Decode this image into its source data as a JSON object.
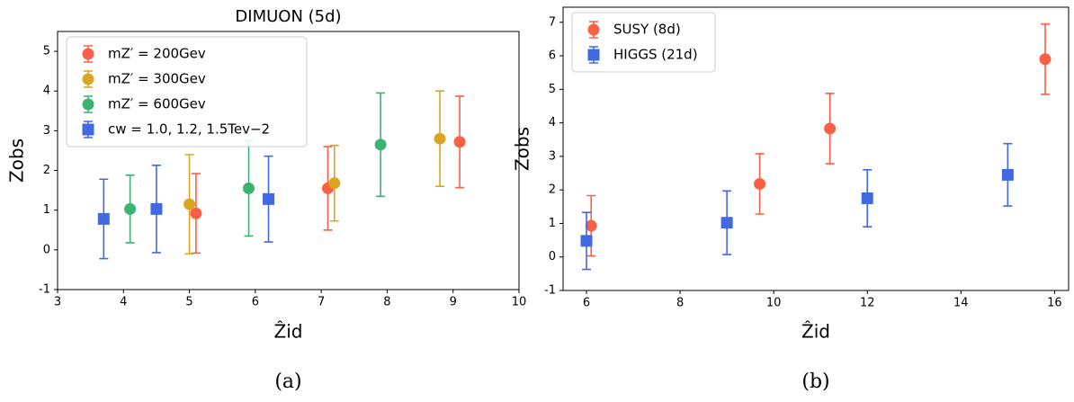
{
  "chart_data": [
    {
      "type": "errorbar",
      "title": "DIMUON (5d)",
      "xlabel": "Ẑid",
      "ylabel": "Zobs",
      "caption": "(a)",
      "xlim": [
        3,
        10
      ],
      "ylim": [
        -1,
        5.5
      ],
      "xticks": [
        3,
        4,
        5,
        6,
        7,
        8,
        9,
        10
      ],
      "yticks": [
        -1,
        0,
        1,
        2,
        3,
        4,
        5
      ],
      "legend": "upper left",
      "series": [
        {
          "name": "mZ′ = 200Gev",
          "color": "#fa6047",
          "marker": "circle",
          "x": [
            5.1,
            7.1,
            9.1
          ],
          "values": [
            0.92,
            1.55,
            2.72
          ],
          "errors": [
            1.0,
            1.05,
            1.15
          ]
        },
        {
          "name": "mZ′ = 300Gev",
          "color": "#daa520",
          "marker": "circle",
          "x": [
            5.0,
            7.2,
            8.8
          ],
          "values": [
            1.15,
            1.68,
            2.8
          ],
          "errors": [
            1.25,
            0.95,
            1.2
          ]
        },
        {
          "name": "mZ′ = 600Gev",
          "color": "#3cb371",
          "marker": "circle",
          "x": [
            4.1,
            5.9,
            7.9
          ],
          "values": [
            1.03,
            1.55,
            2.65
          ],
          "errors": [
            0.85,
            1.2,
            1.3
          ]
        },
        {
          "name": "cw = 1.0, 1.2, 1.5Tev−2",
          "color": "#4169e1",
          "marker": "square",
          "x": [
            3.7,
            4.5,
            6.2
          ],
          "values": [
            0.78,
            1.03,
            1.28
          ],
          "errors": [
            1.0,
            1.1,
            1.08
          ]
        }
      ]
    },
    {
      "type": "errorbar",
      "xlabel": "Ẑid",
      "ylabel": "Zobs",
      "caption": "(b)",
      "xlim": [
        5.5,
        16.3
      ],
      "ylim": [
        -1,
        7.45
      ],
      "xticks": [
        6,
        8,
        10,
        12,
        14,
        16
      ],
      "yticks": [
        -1,
        0,
        1,
        2,
        3,
        4,
        5,
        6,
        7
      ],
      "legend": "upper left",
      "series": [
        {
          "name": "SUSY (8d)",
          "color": "#fa6047",
          "marker": "circle",
          "x": [
            6.1,
            9.7,
            11.2,
            15.8
          ],
          "values": [
            0.93,
            2.18,
            3.83,
            5.9
          ],
          "errors": [
            0.9,
            0.9,
            1.05,
            1.05
          ]
        },
        {
          "name": "HIGGS (21d)",
          "color": "#4169e1",
          "marker": "square",
          "x": [
            6,
            9,
            12,
            15
          ],
          "values": [
            0.48,
            1.02,
            1.75,
            2.45
          ],
          "errors": [
            0.85,
            0.95,
            0.85,
            0.93
          ]
        }
      ]
    }
  ]
}
